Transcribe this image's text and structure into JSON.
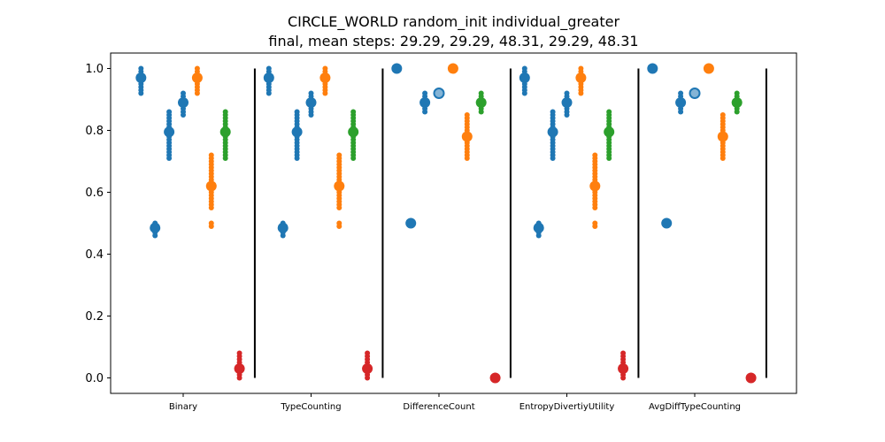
{
  "chart_data": {
    "type": "scatter",
    "title_line1": "CIRCLE_WORLD random_init individual_greater",
    "title_line2": "final, mean steps: 29.29, 29.29, 48.31, 29.29, 48.31",
    "categories": [
      "Binary",
      "TypeCounting",
      "DifferenceCount",
      "EntropyDivertiyUtility",
      "AvgDiffTypeCounting"
    ],
    "ylim": [
      -0.05,
      1.05
    ],
    "yticks": [
      "0.0",
      "0.2",
      "0.4",
      "0.6",
      "0.8",
      "1.0"
    ],
    "grid": false,
    "colors": {
      "blue": "#1f77b4",
      "orange": "#ff7f0e",
      "green": "#2ca02c",
      "red": "#d62728"
    },
    "groups": [
      {
        "category": "Binary",
        "strips": [
          {
            "offset": -0.33,
            "color": "blue",
            "mean": 0.97,
            "values": [
              0.92,
              0.93,
              0.94,
              0.95,
              0.96,
              0.97,
              0.98,
              0.99,
              1.0
            ]
          },
          {
            "offset": -0.22,
            "color": "blue",
            "mean": 0.485,
            "values": [
              0.46,
              0.47,
              0.48,
              0.49,
              0.5
            ]
          },
          {
            "offset": -0.11,
            "color": "blue",
            "mean": 0.795,
            "values": [
              0.71,
              0.72,
              0.73,
              0.74,
              0.75,
              0.76,
              0.77,
              0.78,
              0.79,
              0.8,
              0.81,
              0.82,
              0.83,
              0.84,
              0.85,
              0.86
            ]
          },
          {
            "offset": 0.0,
            "color": "blue",
            "mean": 0.89,
            "values": [
              0.85,
              0.86,
              0.87,
              0.88,
              0.89,
              0.9,
              0.91,
              0.92
            ]
          },
          {
            "offset": 0.11,
            "color": "orange",
            "mean": 0.97,
            "values": [
              0.92,
              0.93,
              0.94,
              0.95,
              0.96,
              0.97,
              0.98,
              0.99,
              1.0
            ]
          },
          {
            "offset": 0.22,
            "color": "orange",
            "mean": 0.62,
            "values": [
              0.49,
              0.5,
              0.55,
              0.56,
              0.57,
              0.58,
              0.59,
              0.6,
              0.61,
              0.62,
              0.63,
              0.64,
              0.65,
              0.66,
              0.67,
              0.68,
              0.69,
              0.7,
              0.71,
              0.72
            ]
          },
          {
            "offset": 0.33,
            "color": "green",
            "mean": 0.795,
            "values": [
              0.71,
              0.72,
              0.73,
              0.74,
              0.75,
              0.76,
              0.77,
              0.78,
              0.79,
              0.8,
              0.81,
              0.82,
              0.83,
              0.84,
              0.85,
              0.86
            ]
          },
          {
            "offset": 0.44,
            "color": "red",
            "mean": 0.03,
            "values": [
              0.0,
              0.01,
              0.02,
              0.03,
              0.04,
              0.05,
              0.06,
              0.07,
              0.08
            ]
          }
        ]
      },
      {
        "category": "TypeCounting",
        "strips": [
          {
            "offset": -0.33,
            "color": "blue",
            "mean": 0.97,
            "values": [
              0.92,
              0.93,
              0.94,
              0.95,
              0.96,
              0.97,
              0.98,
              0.99,
              1.0
            ]
          },
          {
            "offset": -0.22,
            "color": "blue",
            "mean": 0.485,
            "values": [
              0.46,
              0.47,
              0.48,
              0.49,
              0.5
            ]
          },
          {
            "offset": -0.11,
            "color": "blue",
            "mean": 0.795,
            "values": [
              0.71,
              0.72,
              0.73,
              0.74,
              0.75,
              0.76,
              0.77,
              0.78,
              0.79,
              0.8,
              0.81,
              0.82,
              0.83,
              0.84,
              0.85,
              0.86
            ]
          },
          {
            "offset": 0.0,
            "color": "blue",
            "mean": 0.89,
            "values": [
              0.85,
              0.86,
              0.87,
              0.88,
              0.89,
              0.9,
              0.91,
              0.92
            ]
          },
          {
            "offset": 0.11,
            "color": "orange",
            "mean": 0.97,
            "values": [
              0.92,
              0.93,
              0.94,
              0.95,
              0.96,
              0.97,
              0.98,
              0.99,
              1.0
            ]
          },
          {
            "offset": 0.22,
            "color": "orange",
            "mean": 0.62,
            "values": [
              0.49,
              0.5,
              0.55,
              0.56,
              0.57,
              0.58,
              0.59,
              0.6,
              0.61,
              0.62,
              0.63,
              0.64,
              0.65,
              0.66,
              0.67,
              0.68,
              0.69,
              0.7,
              0.71,
              0.72
            ]
          },
          {
            "offset": 0.33,
            "color": "green",
            "mean": 0.795,
            "values": [
              0.71,
              0.72,
              0.73,
              0.74,
              0.75,
              0.76,
              0.77,
              0.78,
              0.79,
              0.8,
              0.81,
              0.82,
              0.83,
              0.84,
              0.85,
              0.86
            ]
          },
          {
            "offset": 0.44,
            "color": "red",
            "mean": 0.03,
            "values": [
              0.0,
              0.01,
              0.02,
              0.03,
              0.04,
              0.05,
              0.06,
              0.07,
              0.08
            ]
          }
        ]
      },
      {
        "category": "DifferenceCount",
        "strips": [
          {
            "offset": -0.33,
            "color": "blue",
            "mean": 1.0,
            "values": [
              1.0
            ]
          },
          {
            "offset": -0.22,
            "color": "blue",
            "mean": 0.5,
            "values": [
              0.5
            ]
          },
          {
            "offset": -0.11,
            "color": "blue",
            "mean": 0.89,
            "values": [
              0.86,
              0.87,
              0.88,
              0.89,
              0.9,
              0.91,
              0.92
            ]
          },
          {
            "offset": 0.0,
            "color": "blue",
            "mean": 0.92,
            "values": [
              0.92
            ],
            "hollow": true
          },
          {
            "offset": 0.11,
            "color": "orange",
            "mean": 1.0,
            "values": [
              1.0
            ]
          },
          {
            "offset": 0.22,
            "color": "orange",
            "mean": 0.78,
            "values": [
              0.71,
              0.72,
              0.73,
              0.74,
              0.75,
              0.76,
              0.77,
              0.78,
              0.79,
              0.8,
              0.81,
              0.82,
              0.83,
              0.84,
              0.85
            ]
          },
          {
            "offset": 0.33,
            "color": "green",
            "mean": 0.89,
            "values": [
              0.86,
              0.87,
              0.88,
              0.89,
              0.9,
              0.91,
              0.92
            ]
          },
          {
            "offset": 0.44,
            "color": "red",
            "mean": 0.0,
            "values": [
              0.0
            ]
          }
        ]
      },
      {
        "category": "EntropyDivertiyUtility",
        "strips": [
          {
            "offset": -0.33,
            "color": "blue",
            "mean": 0.97,
            "values": [
              0.92,
              0.93,
              0.94,
              0.95,
              0.96,
              0.97,
              0.98,
              0.99,
              1.0
            ]
          },
          {
            "offset": -0.22,
            "color": "blue",
            "mean": 0.485,
            "values": [
              0.46,
              0.47,
              0.48,
              0.49,
              0.5
            ]
          },
          {
            "offset": -0.11,
            "color": "blue",
            "mean": 0.795,
            "values": [
              0.71,
              0.72,
              0.73,
              0.74,
              0.75,
              0.76,
              0.77,
              0.78,
              0.79,
              0.8,
              0.81,
              0.82,
              0.83,
              0.84,
              0.85,
              0.86
            ]
          },
          {
            "offset": 0.0,
            "color": "blue",
            "mean": 0.89,
            "values": [
              0.85,
              0.86,
              0.87,
              0.88,
              0.89,
              0.9,
              0.91,
              0.92
            ]
          },
          {
            "offset": 0.11,
            "color": "orange",
            "mean": 0.97,
            "values": [
              0.92,
              0.93,
              0.94,
              0.95,
              0.96,
              0.97,
              0.98,
              0.99,
              1.0
            ]
          },
          {
            "offset": 0.22,
            "color": "orange",
            "mean": 0.62,
            "values": [
              0.49,
              0.5,
              0.55,
              0.56,
              0.57,
              0.58,
              0.59,
              0.6,
              0.61,
              0.62,
              0.63,
              0.64,
              0.65,
              0.66,
              0.67,
              0.68,
              0.69,
              0.7,
              0.71,
              0.72
            ]
          },
          {
            "offset": 0.33,
            "color": "green",
            "mean": 0.795,
            "values": [
              0.71,
              0.72,
              0.73,
              0.74,
              0.75,
              0.76,
              0.77,
              0.78,
              0.79,
              0.8,
              0.81,
              0.82,
              0.83,
              0.84,
              0.85,
              0.86
            ]
          },
          {
            "offset": 0.44,
            "color": "red",
            "mean": 0.03,
            "values": [
              0.0,
              0.01,
              0.02,
              0.03,
              0.04,
              0.05,
              0.06,
              0.07,
              0.08
            ]
          }
        ]
      },
      {
        "category": "AvgDiffTypeCounting",
        "strips": [
          {
            "offset": -0.33,
            "color": "blue",
            "mean": 1.0,
            "values": [
              1.0
            ]
          },
          {
            "offset": -0.22,
            "color": "blue",
            "mean": 0.5,
            "values": [
              0.5
            ]
          },
          {
            "offset": -0.11,
            "color": "blue",
            "mean": 0.89,
            "values": [
              0.86,
              0.87,
              0.88,
              0.89,
              0.9,
              0.91,
              0.92
            ]
          },
          {
            "offset": 0.0,
            "color": "blue",
            "mean": 0.92,
            "values": [
              0.92
            ],
            "hollow": true
          },
          {
            "offset": 0.11,
            "color": "orange",
            "mean": 1.0,
            "values": [
              1.0
            ]
          },
          {
            "offset": 0.22,
            "color": "orange",
            "mean": 0.78,
            "values": [
              0.71,
              0.72,
              0.73,
              0.74,
              0.75,
              0.76,
              0.77,
              0.78,
              0.79,
              0.8,
              0.81,
              0.82,
              0.83,
              0.84,
              0.85
            ]
          },
          {
            "offset": 0.33,
            "color": "green",
            "mean": 0.89,
            "values": [
              0.86,
              0.87,
              0.88,
              0.89,
              0.9,
              0.91,
              0.92
            ]
          },
          {
            "offset": 0.44,
            "color": "red",
            "mean": 0.0,
            "values": [
              0.0
            ]
          }
        ]
      }
    ]
  }
}
